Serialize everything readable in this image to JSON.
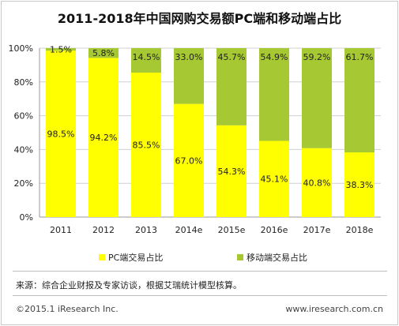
{
  "title": "2011-2018年中国网购交易额PC端和移动端占比",
  "colors": {
    "pc": "#ffff00",
    "mobile": "#a6c832",
    "grid": "#d0d0d0"
  },
  "chart_data": {
    "type": "bar",
    "stacked": true,
    "categories": [
      "2011",
      "2012",
      "2013",
      "2014e",
      "2015e",
      "2016e",
      "2017e",
      "2018e"
    ],
    "series": [
      {
        "name": "PC端交易占比",
        "values": [
          98.5,
          94.2,
          85.5,
          67.0,
          54.3,
          45.1,
          40.8,
          38.3
        ],
        "labels": [
          "98.5%",
          "94.2%",
          "85.5%",
          "67.0%",
          "54.3%",
          "45.1%",
          "40.8%",
          "38.3%"
        ]
      },
      {
        "name": "移动端交易占比",
        "values": [
          1.5,
          5.8,
          14.5,
          33.0,
          45.7,
          54.9,
          59.2,
          61.7
        ],
        "labels": [
          "1.5%",
          "5.8%",
          "14.5%",
          "33.0%",
          "45.7%",
          "54.9%",
          "59.2%",
          "61.7%"
        ]
      }
    ],
    "yticks": [
      "0%",
      "20%",
      "40%",
      "60%",
      "80%",
      "100%"
    ],
    "ylim": [
      0,
      100
    ],
    "grid": true,
    "legend_position": "bottom"
  },
  "source_note": "来源：综合企业财报及专家访谈，根据艾瑞统计模型核算。",
  "footer": {
    "copyright": "©2015.1 iResearch Inc.",
    "website": "www.iresearch.com.cn"
  }
}
